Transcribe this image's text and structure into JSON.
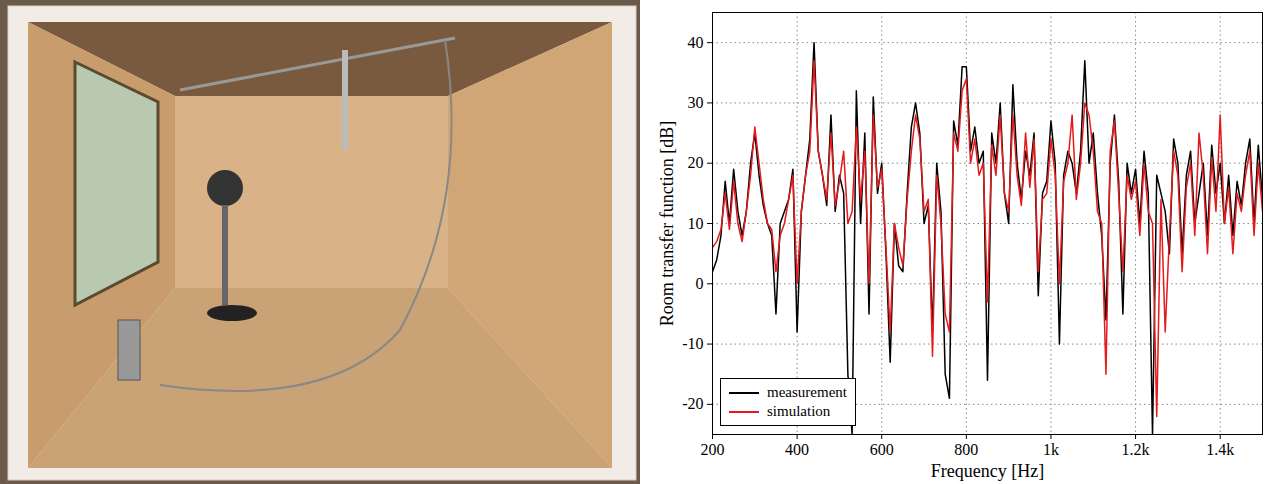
{
  "chart_data": {
    "type": "line",
    "x_label": "Frequency [Hz]",
    "y_label": "Room transfer function [dB]",
    "xlim": [
      200,
      1500
    ],
    "ylim": [
      -25,
      45
    ],
    "xticks": [
      200,
      400,
      600,
      800,
      {
        "value": 1000,
        "label": "1k"
      },
      {
        "value": 1200,
        "label": "1.2k"
      },
      {
        "value": 1400,
        "label": "1.4k"
      }
    ],
    "yticks": [
      -20,
      -10,
      0,
      10,
      20,
      30,
      40
    ],
    "grid": true,
    "legend": "lower left",
    "x": [
      200,
      210,
      220,
      230,
      240,
      250,
      260,
      270,
      280,
      290,
      300,
      310,
      320,
      330,
      340,
      350,
      360,
      370,
      380,
      390,
      400,
      410,
      420,
      430,
      440,
      450,
      460,
      470,
      480,
      490,
      500,
      510,
      520,
      530,
      540,
      550,
      560,
      570,
      580,
      590,
      600,
      610,
      620,
      630,
      640,
      650,
      660,
      670,
      680,
      690,
      700,
      710,
      720,
      730,
      740,
      750,
      760,
      770,
      780,
      790,
      800,
      810,
      820,
      830,
      840,
      850,
      860,
      870,
      880,
      890,
      900,
      910,
      920,
      930,
      940,
      950,
      960,
      970,
      980,
      990,
      1000,
      1010,
      1020,
      1030,
      1040,
      1050,
      1060,
      1070,
      1080,
      1090,
      1100,
      1110,
      1120,
      1130,
      1140,
      1150,
      1160,
      1170,
      1180,
      1190,
      1200,
      1210,
      1220,
      1230,
      1240,
      1250,
      1260,
      1270,
      1280,
      1290,
      1300,
      1310,
      1320,
      1330,
      1340,
      1350,
      1360,
      1370,
      1380,
      1390,
      1400,
      1410,
      1420,
      1430,
      1440,
      1450,
      1460,
      1470,
      1480,
      1490,
      1500
    ],
    "series": [
      {
        "name": "measurement",
        "color": "#000000",
        "values": [
          2,
          4,
          8,
          17,
          10,
          19,
          12,
          8,
          12,
          20,
          25,
          18,
          13,
          10,
          8,
          -5,
          10,
          12,
          14,
          19,
          -8,
          12,
          18,
          24,
          40,
          22,
          18,
          13,
          28,
          12,
          18,
          15,
          -15,
          -25,
          32,
          10,
          25,
          -5,
          31,
          15,
          20,
          5,
          -13,
          10,
          3,
          2,
          15,
          26,
          30,
          25,
          10,
          13,
          -8,
          20,
          12,
          -15,
          -19,
          27,
          23,
          36,
          36,
          22,
          26,
          20,
          22,
          -16,
          25,
          20,
          30,
          15,
          10,
          33,
          20,
          14,
          22,
          18,
          25,
          -2,
          15,
          17,
          27,
          20,
          -10,
          18,
          22,
          20,
          15,
          22,
          37,
          20,
          25,
          15,
          8,
          -6,
          20,
          28,
          17,
          -5,
          20,
          15,
          19,
          10,
          22,
          15,
          -25,
          18,
          15,
          12,
          5,
          24,
          20,
          5,
          18,
          22,
          10,
          15,
          20,
          8,
          23,
          15,
          20,
          10,
          18,
          8,
          17,
          13,
          20,
          24,
          10,
          23,
          14
        ]
      },
      {
        "name": "simulation",
        "color": "#e41a1c",
        "values": [
          6,
          7,
          9,
          15,
          9,
          17,
          10,
          7,
          12,
          18,
          26,
          20,
          14,
          10,
          9,
          2,
          8,
          10,
          14,
          18,
          0,
          12,
          18,
          22,
          37,
          22,
          18,
          14,
          25,
          13,
          17,
          22,
          10,
          12,
          26,
          14,
          22,
          0,
          28,
          16,
          19,
          6,
          -8,
          10,
          6,
          3,
          14,
          22,
          28,
          24,
          12,
          14,
          -12,
          18,
          10,
          -5,
          -8,
          25,
          22,
          32,
          34,
          20,
          24,
          18,
          20,
          -3,
          23,
          18,
          28,
          15,
          12,
          28,
          18,
          13,
          25,
          16,
          24,
          2,
          14,
          15,
          24,
          18,
          0,
          17,
          20,
          28,
          14,
          20,
          30,
          28,
          22,
          12,
          10,
          -15,
          22,
          27,
          15,
          2,
          18,
          14,
          17,
          8,
          20,
          12,
          10,
          -22,
          14,
          -8,
          8,
          22,
          18,
          2,
          16,
          20,
          8,
          25,
          18,
          5,
          21,
          12,
          28,
          10,
          16,
          5,
          15,
          12,
          18,
          22,
          8,
          20,
          12
        ]
      }
    ]
  }
}
